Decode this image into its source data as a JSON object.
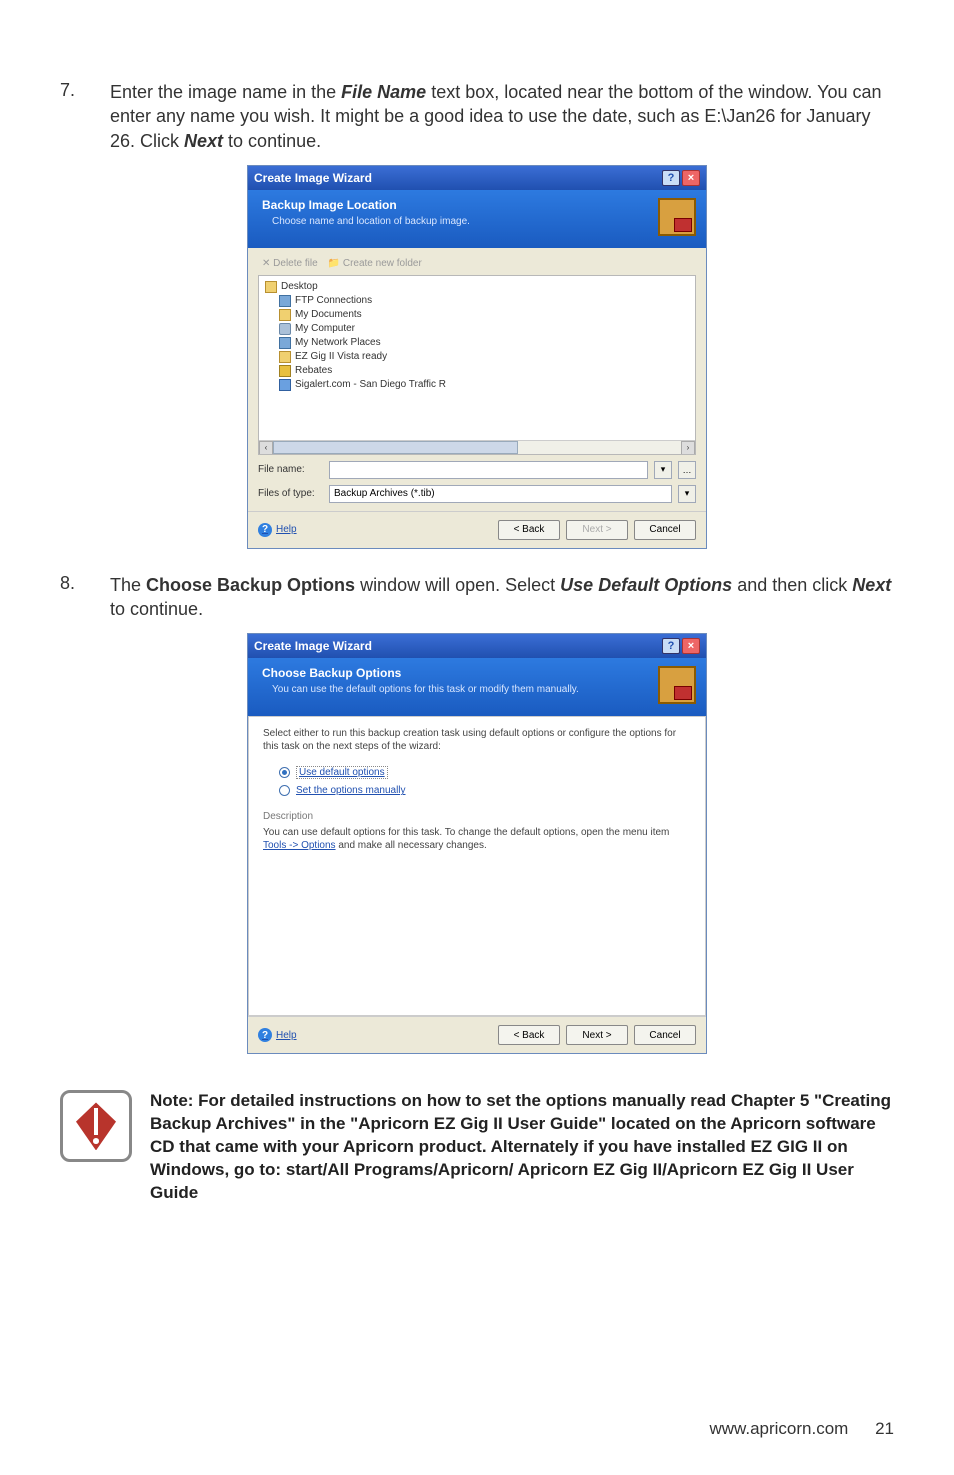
{
  "step7": {
    "num": "7.",
    "text_pre": "Enter the image name in the ",
    "em1": "File Name",
    "text_mid1": " text box, located near the bottom of the window. You can enter any name you wish. It might be a good idea to use the date, such as E:\\Jan26 for January 26. Click ",
    "em2": "Next",
    "text_post": " to continue."
  },
  "wizard1": {
    "title": "Create Image Wizard",
    "header_title": "Backup Image Location",
    "header_sub": "Choose name and location of backup image.",
    "toolbar_delete": "✕ Delete file",
    "toolbar_new": "📁 Create new folder",
    "tree": {
      "desktop": "Desktop",
      "ftp": "FTP Connections",
      "mydocs": "My Documents",
      "mycomp": "My Computer",
      "mynet": "My Network Places",
      "ezgig": "EZ Gig II Vista ready",
      "rebates": "Rebates",
      "sigalert": "Sigalert.com - San Diego Traffic R"
    },
    "filename_label": "File name:",
    "filename_value": "",
    "filestype_label": "Files of type:",
    "filestype_value": "Backup Archives (*.tib)",
    "help": "Help",
    "back": "< Back",
    "next": "Next >",
    "cancel": "Cancel"
  },
  "step8": {
    "num": "8.",
    "text_pre": "The ",
    "b1": "Choose Backup Options",
    "text_mid1": " window will open. Select ",
    "em1": "Use Default Options",
    "text_mid2": " and then click ",
    "em2": "Next",
    "text_post": " to continue."
  },
  "wizard2": {
    "title": "Create Image Wizard",
    "header_title": "Choose Backup Options",
    "header_sub": "You can use the default options for this task or modify them manually.",
    "intro": "Select either to run this backup creation task using default options or configure the options for this task on the next steps of the wizard:",
    "opt1": "Use default options",
    "opt2": "Set the options manually",
    "desc_label": "Description",
    "desc_pre": "You can use default options for this task. To change the default options, open the menu item ",
    "desc_link": "Tools -> Options",
    "desc_post": " and make all necessary changes.",
    "help": "Help",
    "back": "< Back",
    "next": "Next >",
    "cancel": "Cancel"
  },
  "note": "Note: For detailed instructions on how to set the options manually read Chapter 5 \"Creating Backup Archives\" in the \"Apricorn EZ Gig II User Guide\" located on the Apricorn software CD that came with your Apricorn product. Alternately if you have installed EZ GIG II on Windows, go to: start/All Programs/Apricorn/ Apricorn EZ Gig II/Apricorn EZ Gig II User Guide",
  "footer_url": "www.apricorn.com",
  "footer_page": "21"
}
